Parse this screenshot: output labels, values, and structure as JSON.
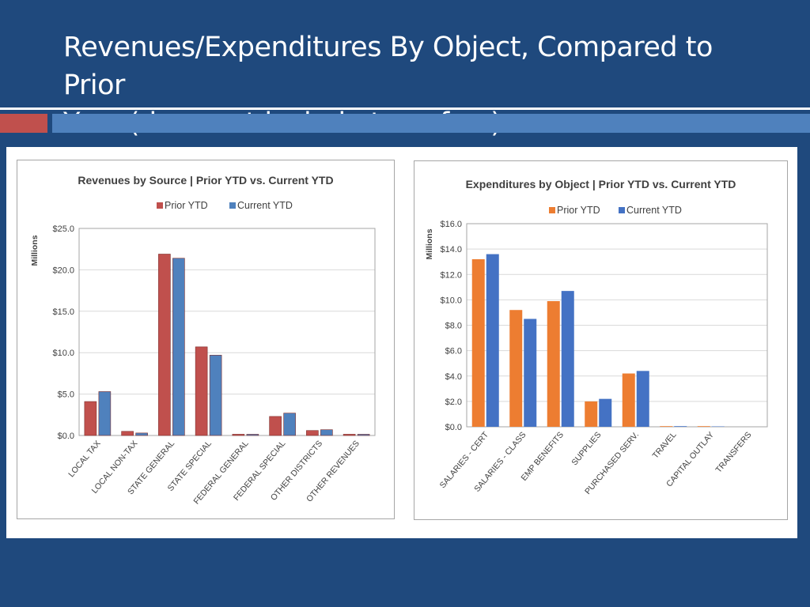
{
  "slide": {
    "title_line1": "Revenues/Expenditures By Object, Compared to Prior",
    "title_line2": "Year (does not include transfers)"
  },
  "chart_data": [
    {
      "type": "bar",
      "title": "Revenues by Source | Prior YTD vs. Current YTD",
      "ylabel": "Millions",
      "ylim": [
        0,
        25
      ],
      "yticks": [
        "$0.0",
        "$5.0",
        "$10.0",
        "$15.0",
        "$20.0",
        "$25.0"
      ],
      "categories": [
        "LOCAL TAX",
        "LOCAL NON-TAX",
        "STATE GENERAL",
        "STATE SPECIAL",
        "FEDERAL GENERAL",
        "FEDERAL SPECIAL",
        "OTHER DISTRICTS",
        "OTHER REVENUES"
      ],
      "series": [
        {
          "name": "Prior YTD",
          "color": "#c0504d",
          "values": [
            4.1,
            0.5,
            21.9,
            10.7,
            0.15,
            2.3,
            0.6,
            0.15
          ]
        },
        {
          "name": "Current YTD",
          "color": "#4f81bd",
          "values": [
            5.3,
            0.3,
            21.4,
            9.7,
            0.15,
            2.7,
            0.7,
            0.15
          ]
        }
      ],
      "legend": "top",
      "grid": true
    },
    {
      "type": "bar",
      "title": "Expenditures by Object | Prior YTD vs. Current YTD",
      "ylabel": "Millions",
      "ylim": [
        0,
        16
      ],
      "yticks": [
        "$0.0",
        "$2.0",
        "$4.0",
        "$6.0",
        "$8.0",
        "$10.0",
        "$12.0",
        "$14.0",
        "$16.0"
      ],
      "categories": [
        "SALARIES - CERT",
        "SALARIES - CLASS",
        "EMP BENEFITS",
        "SUPPLIES",
        "PURCHASED SERV.",
        "TRAVEL",
        "CAPITAL OUTLAY",
        "TRANSFERS"
      ],
      "series": [
        {
          "name": "Prior YTD",
          "color": "#ed7d31",
          "values": [
            13.2,
            9.2,
            9.9,
            2.0,
            4.2,
            0.05,
            0.05,
            0
          ]
        },
        {
          "name": "Current YTD",
          "color": "#4472c4",
          "values": [
            13.6,
            8.5,
            10.7,
            2.2,
            4.4,
            0.05,
            0.03,
            0
          ]
        }
      ],
      "legend": "top",
      "grid": true
    }
  ]
}
